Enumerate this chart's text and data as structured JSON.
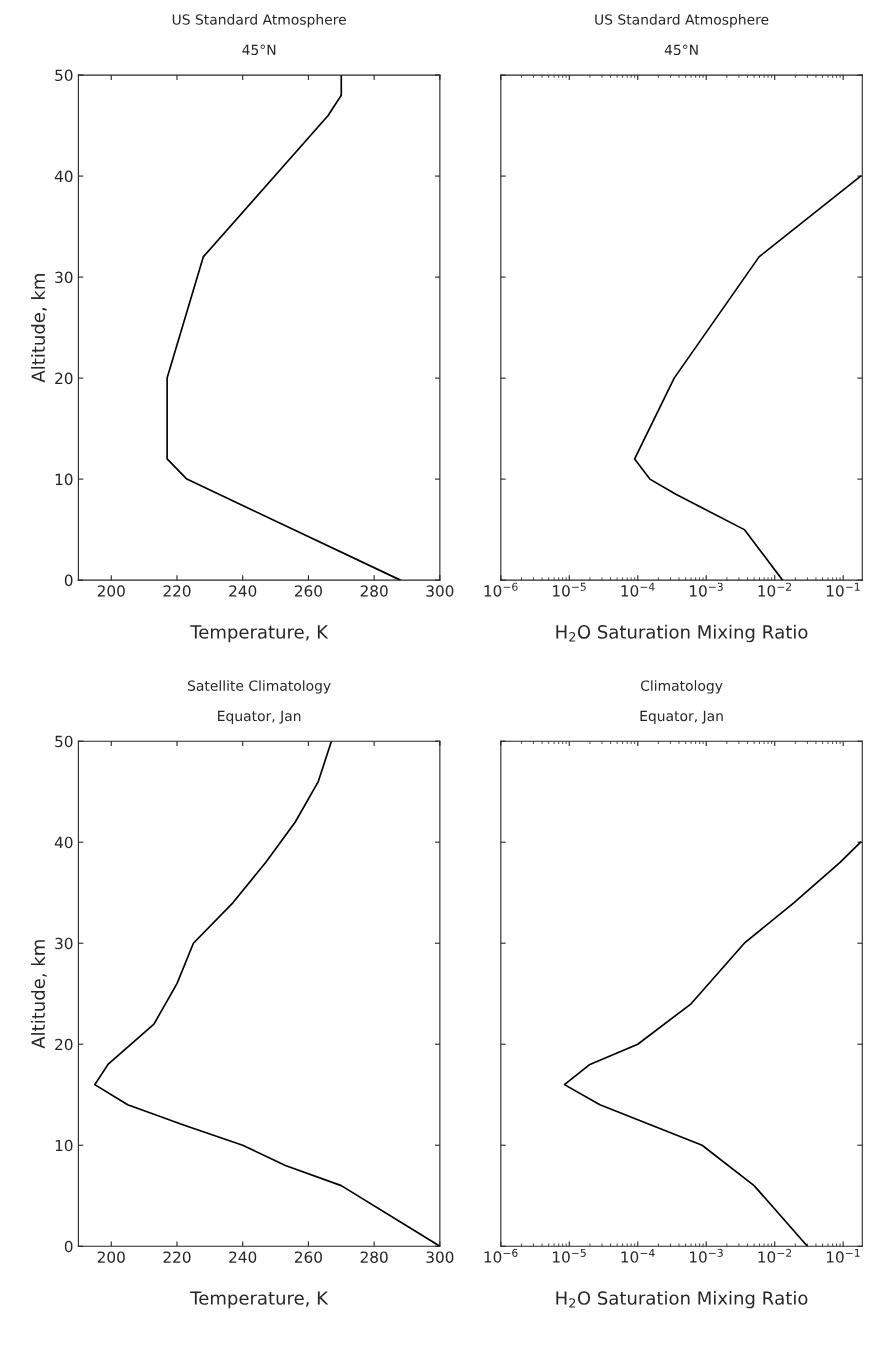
{
  "chart_data": [
    {
      "type": "line",
      "title": "US Standard Atmosphere",
      "subtitle": "45°N",
      "xlabel": "Temperature, K",
      "ylabel": "Altitude, km",
      "x": [
        288,
        223,
        217,
        217,
        228,
        266,
        270,
        270
      ],
      "series": [
        {
          "color": "#000000",
          "values": [
            0,
            10,
            12,
            20,
            32,
            46,
            48,
            50
          ]
        }
      ],
      "xlim": [
        190,
        300
      ],
      "xticks": [
        200,
        220,
        240,
        260,
        280,
        300
      ],
      "ylim": [
        0,
        50
      ],
      "yticks": [
        0,
        10,
        20,
        30,
        40,
        50
      ],
      "grid": false
    },
    {
      "type": "line",
      "title": "US Standard Atmosphere",
      "subtitle": "45°N",
      "xlabel": "H$_{2}$O Saturation Mixing Ratio",
      "x": [
        0.013,
        0.0036,
        0.00036,
        0.00015,
        9e-05,
        0.00034,
        0.0059,
        0.18
      ],
      "series": [
        {
          "color": "#000000",
          "values": [
            0,
            5,
            8.5,
            10,
            12,
            20,
            32,
            40
          ]
        }
      ],
      "log": "x",
      "xlim": [
        1e-06,
        0.19
      ],
      "xticks": [
        {
          "value": 1e-06,
          "label": "10$^{−6}$"
        },
        {
          "value": 1e-05,
          "label": "10$^{−5}$"
        },
        {
          "value": 0.0001,
          "label": "10$^{−4}$"
        },
        {
          "value": 0.001,
          "label": "10$^{−3}$"
        },
        {
          "value": 0.01,
          "label": "10$^{−2}$"
        },
        {
          "value": 0.1,
          "label": "10$^{−1}$"
        }
      ],
      "ylim": [
        0,
        50
      ],
      "tick_labels": "x",
      "grid": false
    },
    {
      "type": "line",
      "title": "Satellite Climatology",
      "subtitle": "Equator, Jan",
      "xlabel": "Temperature, K",
      "ylabel": "Altitude, km",
      "x": [
        300,
        270,
        253,
        240,
        222,
        205,
        195,
        199,
        213,
        220,
        225,
        237,
        247,
        256,
        263,
        267
      ],
      "series": [
        {
          "color": "#000000",
          "values": [
            0,
            6,
            8,
            10,
            12,
            14,
            16,
            18,
            22,
            26,
            30,
            34,
            38,
            42,
            46,
            50
          ]
        }
      ],
      "xlim": [
        190,
        300
      ],
      "xticks": [
        200,
        220,
        240,
        260,
        280,
        300
      ],
      "ylim": [
        0,
        50
      ],
      "yticks": [
        0,
        10,
        20,
        30,
        40,
        50
      ],
      "grid": false
    },
    {
      "type": "line",
      "title": "Climatology",
      "subtitle": "Equator, Jan",
      "xlabel": "H$_{2}$O Saturation Mixing Ratio",
      "x": [
        0.03,
        0.005,
        0.00087,
        2.8e-05,
        8.5e-06,
        2e-05,
        0.0001,
        0.0006,
        0.0036,
        0.019,
        0.09,
        0.18
      ],
      "series": [
        {
          "color": "#000000",
          "values": [
            0,
            6,
            10,
            14,
            16,
            18,
            20,
            24,
            30,
            34,
            38,
            40
          ]
        }
      ],
      "log": "x",
      "xlim": [
        1e-06,
        0.19
      ],
      "xticks": [
        {
          "value": 1e-06,
          "label": "10$^{−6}$"
        },
        {
          "value": 1e-05,
          "label": "10$^{−5}$"
        },
        {
          "value": 0.0001,
          "label": "10$^{−4}$"
        },
        {
          "value": 0.001,
          "label": "10$^{−3}$"
        },
        {
          "value": 0.01,
          "label": "10$^{−2}$"
        },
        {
          "value": 0.1,
          "label": "10$^{−1}$"
        }
      ],
      "ylim": [
        0,
        50
      ],
      "tick_labels": "x",
      "grid": false
    }
  ]
}
